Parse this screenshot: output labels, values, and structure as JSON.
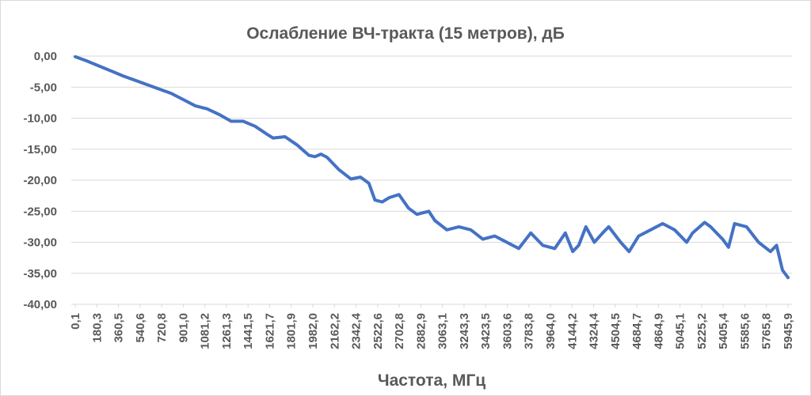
{
  "chart_data": {
    "type": "line",
    "title": "Ослабление ВЧ-тракта (15 метров), дБ",
    "x_label": "Частота, МГц",
    "xlim": [
      -33,
      5979
    ],
    "ylim": [
      -40,
      0
    ],
    "yticks": [
      {
        "value": 0,
        "label": "0,00"
      },
      {
        "value": -5,
        "label": "-5,00"
      },
      {
        "value": -10,
        "label": "-10,00"
      },
      {
        "value": -15,
        "label": "-15,00"
      },
      {
        "value": -20,
        "label": "-20,00"
      },
      {
        "value": -25,
        "label": "-25,00"
      },
      {
        "value": -30,
        "label": "-30,00"
      },
      {
        "value": -35,
        "label": "-35,00"
      },
      {
        "value": -40,
        "label": "-40,00"
      }
    ],
    "xticks": [
      {
        "value": 0.1,
        "label": "0,1"
      },
      {
        "value": 180.3,
        "label": "180,3"
      },
      {
        "value": 360.5,
        "label": "360,5"
      },
      {
        "value": 540.6,
        "label": "540,6"
      },
      {
        "value": 720.8,
        "label": "720,8"
      },
      {
        "value": 901.0,
        "label": "901,0"
      },
      {
        "value": 1081.2,
        "label": "1081,2"
      },
      {
        "value": 1261.3,
        "label": "1261,3"
      },
      {
        "value": 1441.5,
        "label": "1441,5"
      },
      {
        "value": 1621.7,
        "label": "1621,7"
      },
      {
        "value": 1801.9,
        "label": "1801,9"
      },
      {
        "value": 1982.0,
        "label": "1982,0"
      },
      {
        "value": 2162.2,
        "label": "2162,2"
      },
      {
        "value": 2342.4,
        "label": "2342,4"
      },
      {
        "value": 2522.6,
        "label": "2522,6"
      },
      {
        "value": 2702.8,
        "label": "2702,8"
      },
      {
        "value": 2882.9,
        "label": "2882,9"
      },
      {
        "value": 3063.1,
        "label": "3063,1"
      },
      {
        "value": 3243.3,
        "label": "3243,3"
      },
      {
        "value": 3423.5,
        "label": "3423,5"
      },
      {
        "value": 3603.6,
        "label": "3603,6"
      },
      {
        "value": 3783.8,
        "label": "3783,8"
      },
      {
        "value": 3964.0,
        "label": "3964,0"
      },
      {
        "value": 4144.2,
        "label": "4144,2"
      },
      {
        "value": 4324.4,
        "label": "4324,4"
      },
      {
        "value": 4504.5,
        "label": "4504,5"
      },
      {
        "value": 4684.7,
        "label": "4684,7"
      },
      {
        "value": 4864.9,
        "label": "4864,9"
      },
      {
        "value": 5045.1,
        "label": "5045,1"
      },
      {
        "value": 5225.2,
        "label": "5225,2"
      },
      {
        "value": 5405.4,
        "label": "5405,4"
      },
      {
        "value": 5585.6,
        "label": "5585,6"
      },
      {
        "value": 5765.8,
        "label": "5765,8"
      },
      {
        "value": 5945.9,
        "label": "5945,9"
      }
    ],
    "grid": true,
    "series": [
      {
        "color": "#4472c4",
        "x": [
          0.1,
          100,
          200,
          300,
          400,
          500,
          600,
          700,
          800,
          900,
          1000,
          1100,
          1200,
          1300,
          1400,
          1500,
          1600,
          1650,
          1750,
          1850,
          1950,
          2000,
          2050,
          2100,
          2200,
          2300,
          2380,
          2450,
          2500,
          2560,
          2620,
          2700,
          2780,
          2850,
          2950,
          3000,
          3100,
          3200,
          3300,
          3400,
          3500,
          3600,
          3700,
          3800,
          3900,
          4000,
          4088,
          4150,
          4200,
          4260,
          4330,
          4400,
          4450,
          4550,
          4620,
          4700,
          4800,
          4900,
          5000,
          5100,
          5150,
          5250,
          5300,
          5400,
          5450,
          5500,
          5600,
          5700,
          5800,
          5850,
          5900,
          5945.9
        ],
        "values": [
          -0.1,
          -0.8,
          -1.6,
          -2.4,
          -3.2,
          -3.9,
          -4.6,
          -5.3,
          -6.0,
          -7.0,
          -8.0,
          -8.5,
          -9.4,
          -10.5,
          -10.5,
          -11.3,
          -12.6,
          -13.2,
          -13.0,
          -14.3,
          -16.0,
          -16.2,
          -15.8,
          -16.3,
          -18.3,
          -19.8,
          -19.5,
          -20.5,
          -23.2,
          -23.5,
          -22.8,
          -22.3,
          -24.5,
          -25.5,
          -25.0,
          -26.5,
          -28.0,
          -27.5,
          -28.0,
          -29.5,
          -29.0,
          -30.0,
          -31.0,
          -28.5,
          -30.5,
          -31.0,
          -28.5,
          -31.5,
          -30.5,
          -27.5,
          -30.0,
          -28.5,
          -27.5,
          -30.0,
          -31.5,
          -29.0,
          -28.0,
          -27.0,
          -28.0,
          -30.0,
          -28.5,
          -26.8,
          -27.5,
          -29.5,
          -30.8,
          -27.0,
          -27.5,
          -30.0,
          -31.5,
          -30.5,
          -34.5,
          -35.7
        ]
      }
    ]
  }
}
